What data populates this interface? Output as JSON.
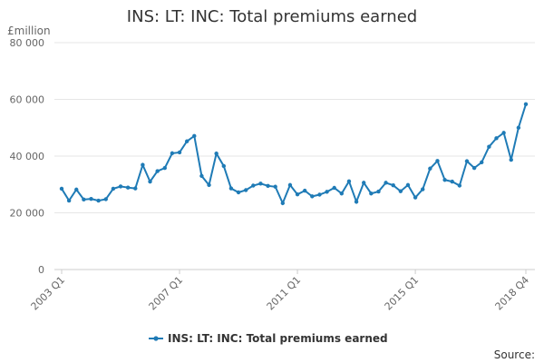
{
  "chart_data": {
    "type": "line",
    "title": "INS: LT: INC: Total premiums earned",
    "ylabel": "£million",
    "ylim": [
      0,
      80000
    ],
    "yticks": [
      0,
      20000,
      40000,
      60000,
      80000
    ],
    "ytick_labels": [
      "0",
      "20 000",
      "40 000",
      "60 000",
      "80 000"
    ],
    "xtick_labels": [
      "2003 Q1",
      "2007 Q1",
      "2011 Q1",
      "2015 Q1",
      "2018 Q4"
    ],
    "xtick_indices": [
      0,
      16,
      32,
      48,
      63
    ],
    "grid": true,
    "legend_position": "bottom",
    "color": "#1f7bb6",
    "series": [
      {
        "name": "INS: LT: INC: Total premiums earned",
        "values": [
          28500,
          24300,
          28200,
          24700,
          24900,
          24300,
          24800,
          28500,
          29300,
          28900,
          28600,
          36900,
          31000,
          34700,
          35800,
          41000,
          41300,
          45200,
          47100,
          33000,
          29800,
          40900,
          36500,
          28600,
          27200,
          28000,
          29600,
          30300,
          29500,
          29200,
          23400,
          29800,
          26500,
          27800,
          25800,
          26400,
          27400,
          28800,
          26800,
          31100,
          23900,
          30600,
          26800,
          27500,
          30600,
          29700,
          27600,
          29800,
          25400,
          28300,
          35600,
          38300,
          31600,
          31000,
          29600,
          38200,
          35800,
          37800,
          43300,
          46300,
          48200,
          38700,
          50000,
          58300
        ]
      }
    ]
  },
  "source_label": "Source:"
}
